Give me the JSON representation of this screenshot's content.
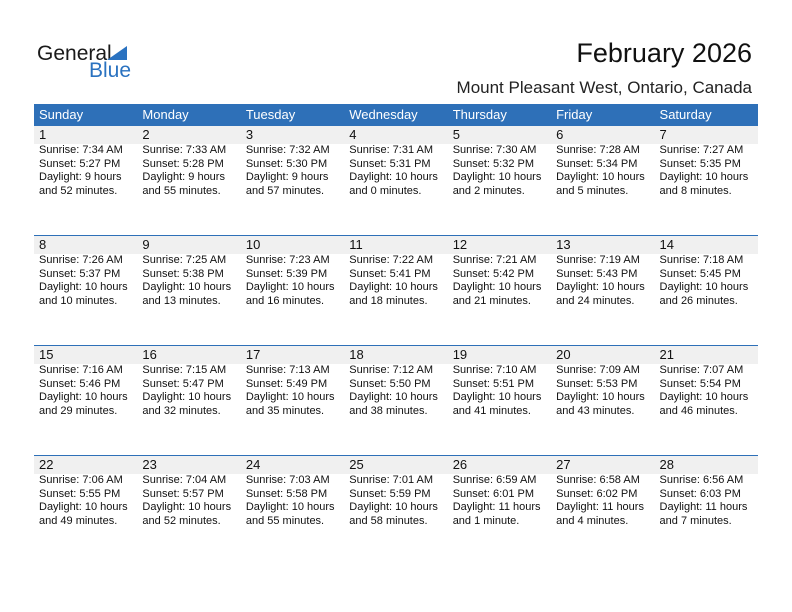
{
  "logo": {
    "general": "General",
    "blue": "Blue"
  },
  "title": "February 2026",
  "location": "Mount Pleasant West, Ontario, Canada",
  "colors": {
    "accent": "#2e70b8",
    "day_band": "#f0f0f0"
  },
  "weekdays": [
    "Sunday",
    "Monday",
    "Tuesday",
    "Wednesday",
    "Thursday",
    "Friday",
    "Saturday"
  ],
  "weeks": [
    [
      {
        "day": "1",
        "sunrise": "Sunrise: 7:34 AM",
        "sunset": "Sunset: 5:27 PM",
        "daylight": "Daylight: 9 hours",
        "minutes": "and 52 minutes."
      },
      {
        "day": "2",
        "sunrise": "Sunrise: 7:33 AM",
        "sunset": "Sunset: 5:28 PM",
        "daylight": "Daylight: 9 hours",
        "minutes": "and 55 minutes."
      },
      {
        "day": "3",
        "sunrise": "Sunrise: 7:32 AM",
        "sunset": "Sunset: 5:30 PM",
        "daylight": "Daylight: 9 hours",
        "minutes": "and 57 minutes."
      },
      {
        "day": "4",
        "sunrise": "Sunrise: 7:31 AM",
        "sunset": "Sunset: 5:31 PM",
        "daylight": "Daylight: 10 hours",
        "minutes": "and 0 minutes."
      },
      {
        "day": "5",
        "sunrise": "Sunrise: 7:30 AM",
        "sunset": "Sunset: 5:32 PM",
        "daylight": "Daylight: 10 hours",
        "minutes": "and 2 minutes."
      },
      {
        "day": "6",
        "sunrise": "Sunrise: 7:28 AM",
        "sunset": "Sunset: 5:34 PM",
        "daylight": "Daylight: 10 hours",
        "minutes": "and 5 minutes."
      },
      {
        "day": "7",
        "sunrise": "Sunrise: 7:27 AM",
        "sunset": "Sunset: 5:35 PM",
        "daylight": "Daylight: 10 hours",
        "minutes": "and 8 minutes."
      }
    ],
    [
      {
        "day": "8",
        "sunrise": "Sunrise: 7:26 AM",
        "sunset": "Sunset: 5:37 PM",
        "daylight": "Daylight: 10 hours",
        "minutes": "and 10 minutes."
      },
      {
        "day": "9",
        "sunrise": "Sunrise: 7:25 AM",
        "sunset": "Sunset: 5:38 PM",
        "daylight": "Daylight: 10 hours",
        "minutes": "and 13 minutes."
      },
      {
        "day": "10",
        "sunrise": "Sunrise: 7:23 AM",
        "sunset": "Sunset: 5:39 PM",
        "daylight": "Daylight: 10 hours",
        "minutes": "and 16 minutes."
      },
      {
        "day": "11",
        "sunrise": "Sunrise: 7:22 AM",
        "sunset": "Sunset: 5:41 PM",
        "daylight": "Daylight: 10 hours",
        "minutes": "and 18 minutes."
      },
      {
        "day": "12",
        "sunrise": "Sunrise: 7:21 AM",
        "sunset": "Sunset: 5:42 PM",
        "daylight": "Daylight: 10 hours",
        "minutes": "and 21 minutes."
      },
      {
        "day": "13",
        "sunrise": "Sunrise: 7:19 AM",
        "sunset": "Sunset: 5:43 PM",
        "daylight": "Daylight: 10 hours",
        "minutes": "and 24 minutes."
      },
      {
        "day": "14",
        "sunrise": "Sunrise: 7:18 AM",
        "sunset": "Sunset: 5:45 PM",
        "daylight": "Daylight: 10 hours",
        "minutes": "and 26 minutes."
      }
    ],
    [
      {
        "day": "15",
        "sunrise": "Sunrise: 7:16 AM",
        "sunset": "Sunset: 5:46 PM",
        "daylight": "Daylight: 10 hours",
        "minutes": "and 29 minutes."
      },
      {
        "day": "16",
        "sunrise": "Sunrise: 7:15 AM",
        "sunset": "Sunset: 5:47 PM",
        "daylight": "Daylight: 10 hours",
        "minutes": "and 32 minutes."
      },
      {
        "day": "17",
        "sunrise": "Sunrise: 7:13 AM",
        "sunset": "Sunset: 5:49 PM",
        "daylight": "Daylight: 10 hours",
        "minutes": "and 35 minutes."
      },
      {
        "day": "18",
        "sunrise": "Sunrise: 7:12 AM",
        "sunset": "Sunset: 5:50 PM",
        "daylight": "Daylight: 10 hours",
        "minutes": "and 38 minutes."
      },
      {
        "day": "19",
        "sunrise": "Sunrise: 7:10 AM",
        "sunset": "Sunset: 5:51 PM",
        "daylight": "Daylight: 10 hours",
        "minutes": "and 41 minutes."
      },
      {
        "day": "20",
        "sunrise": "Sunrise: 7:09 AM",
        "sunset": "Sunset: 5:53 PM",
        "daylight": "Daylight: 10 hours",
        "minutes": "and 43 minutes."
      },
      {
        "day": "21",
        "sunrise": "Sunrise: 7:07 AM",
        "sunset": "Sunset: 5:54 PM",
        "daylight": "Daylight: 10 hours",
        "minutes": "and 46 minutes."
      }
    ],
    [
      {
        "day": "22",
        "sunrise": "Sunrise: 7:06 AM",
        "sunset": "Sunset: 5:55 PM",
        "daylight": "Daylight: 10 hours",
        "minutes": "and 49 minutes."
      },
      {
        "day": "23",
        "sunrise": "Sunrise: 7:04 AM",
        "sunset": "Sunset: 5:57 PM",
        "daylight": "Daylight: 10 hours",
        "minutes": "and 52 minutes."
      },
      {
        "day": "24",
        "sunrise": "Sunrise: 7:03 AM",
        "sunset": "Sunset: 5:58 PM",
        "daylight": "Daylight: 10 hours",
        "minutes": "and 55 minutes."
      },
      {
        "day": "25",
        "sunrise": "Sunrise: 7:01 AM",
        "sunset": "Sunset: 5:59 PM",
        "daylight": "Daylight: 10 hours",
        "minutes": "and 58 minutes."
      },
      {
        "day": "26",
        "sunrise": "Sunrise: 6:59 AM",
        "sunset": "Sunset: 6:01 PM",
        "daylight": "Daylight: 11 hours",
        "minutes": "and 1 minute."
      },
      {
        "day": "27",
        "sunrise": "Sunrise: 6:58 AM",
        "sunset": "Sunset: 6:02 PM",
        "daylight": "Daylight: 11 hours",
        "minutes": "and 4 minutes."
      },
      {
        "day": "28",
        "sunrise": "Sunrise: 6:56 AM",
        "sunset": "Sunset: 6:03 PM",
        "daylight": "Daylight: 11 hours",
        "minutes": "and 7 minutes."
      }
    ]
  ]
}
